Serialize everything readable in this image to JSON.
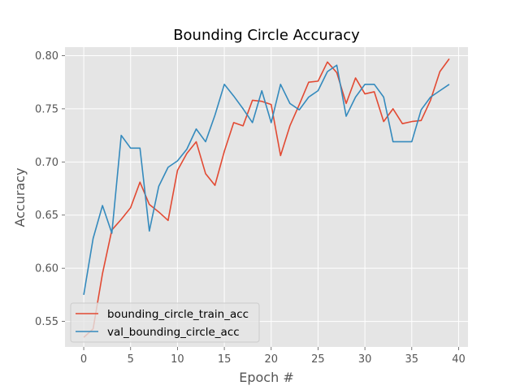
{
  "chart_data": {
    "type": "line",
    "title": "Bounding Circle Accuracy",
    "xlabel": "Epoch #",
    "ylabel": "Accuracy",
    "xlim": [
      -2,
      41
    ],
    "ylim": [
      0.526,
      0.808
    ],
    "xticks": [
      0,
      5,
      10,
      15,
      20,
      25,
      30,
      35,
      40
    ],
    "yticks": [
      0.55,
      0.6,
      0.65,
      0.7,
      0.75,
      0.8
    ],
    "ytick_labels": [
      "0.55",
      "0.60",
      "0.65",
      "0.70",
      "0.75",
      "0.80"
    ],
    "grid": true,
    "legend_position": "lower-left",
    "background": "#e5e5e5",
    "x": [
      0,
      1,
      2,
      3,
      4,
      5,
      6,
      7,
      8,
      9,
      10,
      11,
      12,
      13,
      14,
      15,
      16,
      17,
      18,
      19,
      20,
      21,
      22,
      23,
      24,
      25,
      26,
      27,
      28,
      29,
      30,
      31,
      32,
      33,
      34,
      35,
      36,
      37,
      38,
      39
    ],
    "series": [
      {
        "name": "bounding_circle_train_acc",
        "color": "#e24a33",
        "values": [
          0.535,
          0.543,
          0.595,
          0.636,
          0.646,
          0.657,
          0.681,
          0.66,
          0.653,
          0.645,
          0.692,
          0.708,
          0.719,
          0.689,
          0.678,
          0.71,
          0.737,
          0.734,
          0.758,
          0.757,
          0.754,
          0.706,
          0.734,
          0.754,
          0.775,
          0.776,
          0.794,
          0.784,
          0.755,
          0.779,
          0.764,
          0.766,
          0.738,
          0.75,
          0.736,
          0.738,
          0.739,
          0.758,
          0.785,
          0.797
        ]
      },
      {
        "name": "val_bounding_circle_acc",
        "color": "#348abd",
        "values": [
          0.575,
          0.628,
          0.659,
          0.633,
          0.725,
          0.713,
          0.713,
          0.635,
          0.677,
          0.695,
          0.701,
          0.712,
          0.731,
          0.719,
          0.744,
          0.773,
          0.762,
          0.75,
          0.737,
          0.767,
          0.737,
          0.773,
          0.755,
          0.749,
          0.761,
          0.767,
          0.785,
          0.791,
          0.743,
          0.761,
          0.773,
          0.773,
          0.761,
          0.719,
          0.719,
          0.719,
          0.749,
          0.761,
          0.767,
          0.773
        ]
      }
    ]
  }
}
